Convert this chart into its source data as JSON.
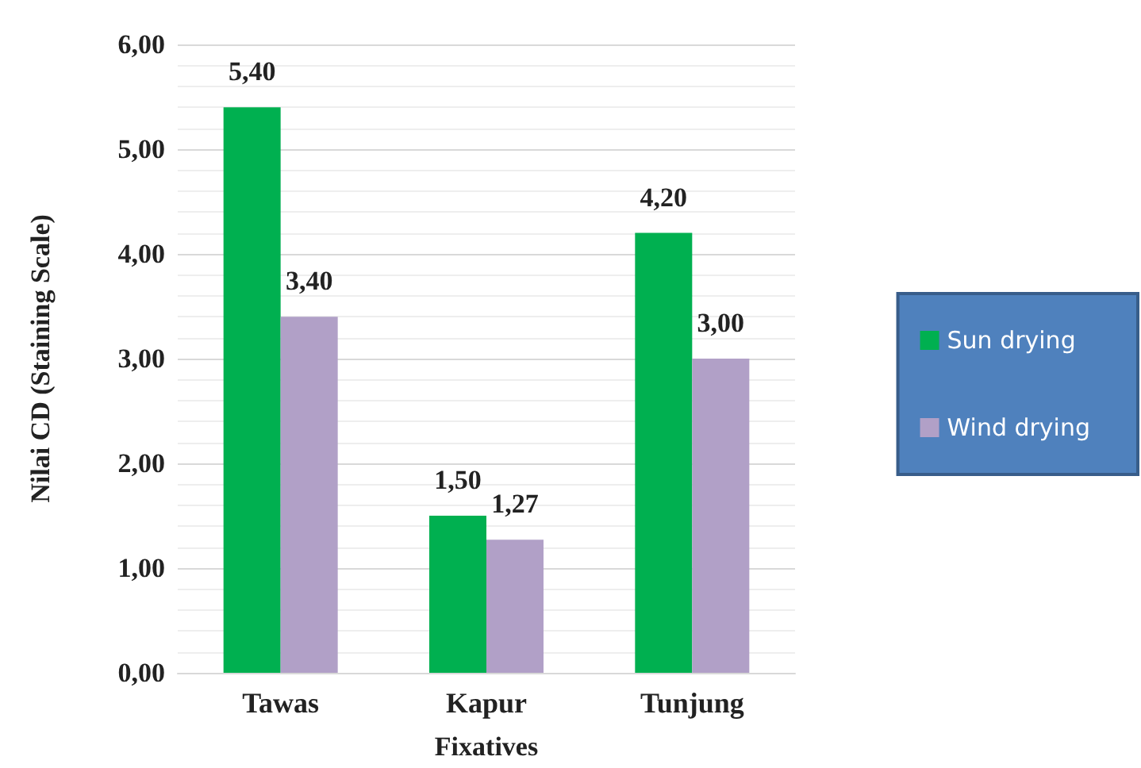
{
  "chart_data": {
    "type": "bar",
    "xlabel": "Fixatives",
    "ylabel": "Nilai CD (Staining Scale)",
    "categories": [
      "Tawas",
      "Kapur",
      "Tunjung"
    ],
    "series": [
      {
        "name": "Sun drying",
        "color": "#00b050",
        "values": [
          5.4,
          1.5,
          4.2
        ],
        "value_labels": [
          "5,40",
          "1,50",
          "4,20"
        ]
      },
      {
        "name": "Wind drying",
        "color": "#b1a0c7",
        "values": [
          3.4,
          1.27,
          3.0
        ],
        "value_labels": [
          "3,40",
          "1,27",
          "3,00"
        ]
      }
    ],
    "ylim": [
      0,
      6
    ],
    "yticks": [
      {
        "value": 0,
        "label": "0,00"
      },
      {
        "value": 1,
        "label": "1,00"
      },
      {
        "value": 2,
        "label": "2,00"
      },
      {
        "value": 3,
        "label": "3,00"
      },
      {
        "value": 4,
        "label": "4,00"
      },
      {
        "value": 5,
        "label": "5,00"
      },
      {
        "value": 6,
        "label": "6,00"
      }
    ],
    "grid": true,
    "legend": "right"
  }
}
